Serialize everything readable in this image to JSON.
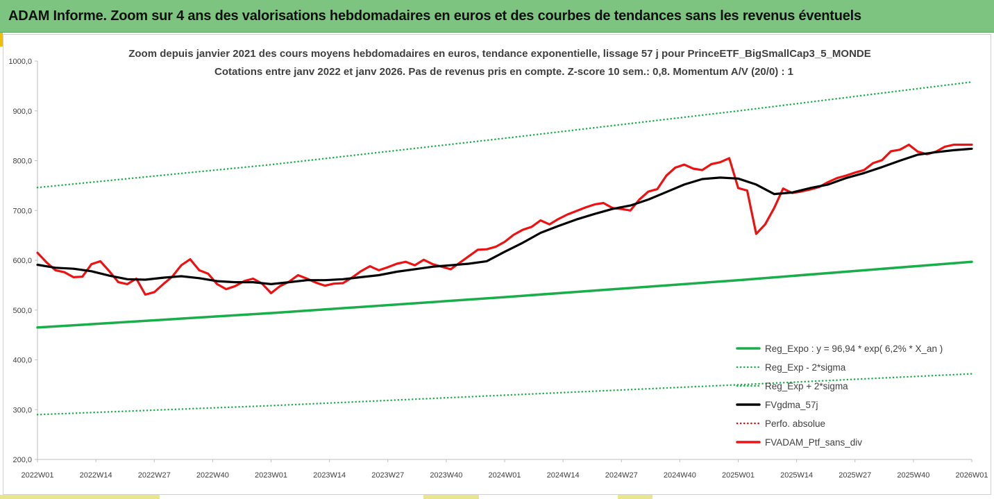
{
  "header": {
    "title": "ADAM Informe. Zoom sur 4 ans des valorisations hebdomadaires en euros et des courbes de tendances sans les revenus éventuels"
  },
  "colors": {
    "header_bg": "#7cc47f",
    "trend_green": "#1aae4a",
    "series_black": "#000000",
    "series_red": "#ee1111",
    "perf_red": "#cc1111"
  },
  "chart_data": {
    "type": "line",
    "title": "Zoom depuis janvier 2021 des cours moyens hebdomadaires  en euros, tendance exponentielle, lissage 57 j pour PrinceETF_BigSmallCap3_5_MONDE",
    "subtitle": "Cotations entre janv 2022 et janv 2026. Pas de revenus pris en compte. Z-score 10 sem.: 0,8. Momentum A/V (20/0) : 1",
    "xlabel": "",
    "ylabel": "",
    "ylim": [
      200,
      1000
    ],
    "y_ticks": [
      "200,0",
      "300,0",
      "400,0",
      "500,0",
      "600,0",
      "700,0",
      "800,0",
      "900,0",
      "1000,0"
    ],
    "x_ticks": [
      "2022W01",
      "2022W14",
      "2022W27",
      "2022W40",
      "2023W01",
      "2023W14",
      "2023W27",
      "2023W40",
      "2024W01",
      "2024W14",
      "2024W27",
      "2024W40",
      "2025W01",
      "2025W14",
      "2025W27",
      "2025W40",
      "2026W01"
    ],
    "x_range_weeks": [
      0,
      208
    ],
    "grid": false,
    "legend_position": "bottom-right",
    "legend": [
      "Reg_Expo : y = 96,94 * exp( 6,2% *  X_an )",
      "Reg_Exp - 2*sigma",
      "Reg_Exp + 2*sigma",
      "FVgdma_57j",
      "Perfo. absolue",
      "FVADAM_Ptf_sans_div"
    ],
    "series": [
      {
        "name": "Reg_Expo : y = 96,94 * exp( 6,2% *  X_an )",
        "style": "solid",
        "color": "#1aae4a",
        "x": [
          0,
          52,
          104,
          156,
          208
        ],
        "values": [
          465,
          494,
          526,
          560,
          597
        ]
      },
      {
        "name": "Reg_Exp - 2*sigma",
        "style": "dotted",
        "color": "#1aae4a",
        "x": [
          0,
          52,
          104,
          156,
          208
        ],
        "values": [
          290,
          308,
          329,
          350,
          372
        ]
      },
      {
        "name": "Reg_Exp + 2*sigma",
        "style": "dotted",
        "color": "#1aae4a",
        "x": [
          0,
          52,
          104,
          156,
          208
        ],
        "values": [
          746,
          792,
          845,
          900,
          958
        ]
      },
      {
        "name": "FVgdma_57j",
        "style": "solid",
        "color": "#000000",
        "x": [
          0,
          4,
          8,
          12,
          16,
          20,
          24,
          28,
          32,
          36,
          40,
          44,
          48,
          52,
          56,
          60,
          64,
          68,
          72,
          76,
          80,
          84,
          88,
          92,
          96,
          100,
          104,
          108,
          112,
          116,
          120,
          124,
          128,
          132,
          136,
          140,
          144,
          148,
          152,
          156,
          160,
          164,
          168,
          172,
          176,
          180,
          184,
          188,
          192,
          196,
          200,
          204,
          208
        ],
        "values": [
          591,
          585,
          583,
          578,
          569,
          562,
          561,
          565,
          568,
          564,
          558,
          556,
          556,
          552,
          556,
          560,
          560,
          562,
          566,
          570,
          577,
          582,
          587,
          590,
          593,
          598,
          617,
          635,
          655,
          669,
          682,
          693,
          703,
          710,
          722,
          737,
          752,
          763,
          766,
          764,
          752,
          733,
          736,
          745,
          752,
          765,
          775,
          787,
          800,
          812,
          817,
          821,
          824
        ]
      },
      {
        "name": "FVADAM_Ptf_sans_div",
        "style": "solid",
        "color": "#ee1111",
        "x": [
          0,
          2,
          4,
          6,
          8,
          10,
          12,
          14,
          16,
          18,
          20,
          22,
          24,
          26,
          28,
          30,
          32,
          34,
          36,
          38,
          40,
          42,
          44,
          46,
          48,
          50,
          52,
          54,
          56,
          58,
          60,
          62,
          64,
          66,
          68,
          70,
          72,
          74,
          76,
          78,
          80,
          82,
          84,
          86,
          88,
          90,
          92,
          94,
          96,
          98,
          100,
          102,
          104,
          106,
          108,
          110,
          112,
          114,
          116,
          118,
          120,
          122,
          124,
          126,
          128,
          130,
          132,
          134,
          136,
          138,
          140,
          142,
          144,
          146,
          148,
          150,
          152,
          154,
          156,
          158,
          160,
          162,
          164,
          166,
          168,
          170,
          172,
          174,
          176,
          178,
          180,
          182,
          184,
          186,
          188,
          190,
          192,
          194,
          196,
          198,
          200,
          202,
          204,
          206,
          208
        ],
        "values": [
          615,
          596,
          580,
          576,
          566,
          567,
          592,
          598,
          578,
          556,
          552,
          563,
          531,
          536,
          552,
          567,
          590,
          602,
          580,
          573,
          552,
          542,
          548,
          558,
          563,
          553,
          534,
          548,
          557,
          570,
          563,
          555,
          549,
          553,
          554,
          565,
          578,
          588,
          580,
          586,
          593,
          597,
          590,
          601,
          592,
          587,
          582,
          595,
          608,
          621,
          622,
          627,
          637,
          651,
          661,
          667,
          680,
          672,
          683,
          692,
          699,
          706,
          712,
          715,
          705,
          703,
          700,
          722,
          738,
          743,
          770,
          786,
          792,
          784,
          781,
          793,
          797,
          805,
          745,
          740,
          653,
          672,
          705,
          744,
          735,
          738,
          742,
          747,
          757,
          765,
          770,
          776,
          781,
          795,
          801,
          819,
          822,
          832,
          818,
          813,
          818,
          828,
          832,
          832,
          832
        ]
      }
    ]
  }
}
